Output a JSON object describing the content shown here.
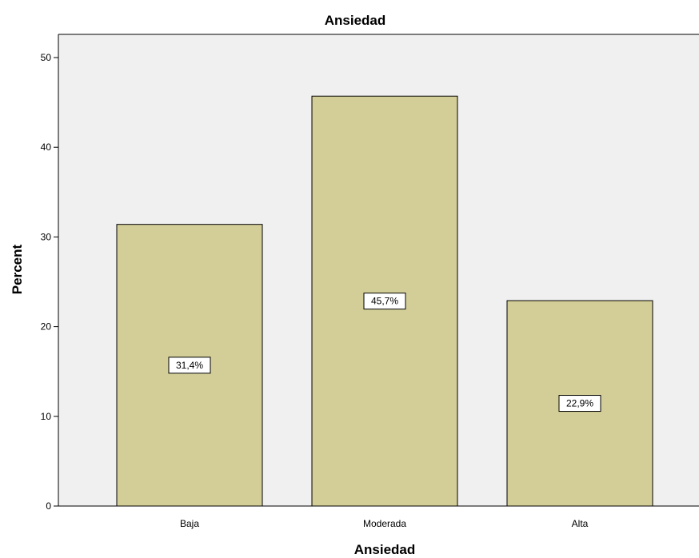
{
  "chart_data": {
    "type": "bar",
    "title": "Ansiedad",
    "xlabel": "Ansiedad",
    "ylabel": "Percent",
    "categories": [
      "Baja",
      "Moderada",
      "Alta"
    ],
    "values": [
      31.4,
      45.7,
      22.9
    ],
    "data_labels": [
      "31,4%",
      "45,7%",
      "22,9%"
    ],
    "ylim": [
      0,
      50
    ],
    "yticks": [
      0,
      10,
      20,
      30,
      40,
      50
    ],
    "ytick_labels": [
      "0",
      "10",
      "20",
      "30",
      "40",
      "50"
    ],
    "grid": false,
    "legend": "none",
    "colors": {
      "bar_fill": "#d3ce97",
      "bar_stroke": "#000000",
      "plot_background": "#f0f0f0",
      "label_box_fill": "#ffffff"
    }
  }
}
